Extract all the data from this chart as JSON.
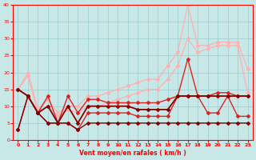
{
  "x": [
    0,
    1,
    2,
    3,
    4,
    5,
    6,
    7,
    8,
    9,
    10,
    11,
    12,
    13,
    14,
    15,
    16,
    17,
    18,
    19,
    20,
    21,
    22,
    23
  ],
  "line_lightpink1": [
    15,
    20,
    9,
    12,
    8,
    10,
    10,
    13,
    13,
    14,
    15,
    16,
    17,
    18,
    18,
    22,
    26,
    40,
    28,
    28,
    29,
    29,
    29,
    21
  ],
  "line_lightpink2": [
    15,
    19,
    8,
    10,
    7,
    9,
    8,
    10,
    10,
    11,
    12,
    13,
    14,
    15,
    15,
    18,
    22,
    30,
    26,
    27,
    28,
    28,
    28,
    14
  ],
  "line_red1": [
    3,
    13,
    8,
    5,
    5,
    5,
    3,
    8,
    8,
    8,
    8,
    8,
    7,
    7,
    7,
    7,
    13,
    24,
    13,
    8,
    8,
    13,
    7,
    7
  ],
  "line_red2": [
    15,
    13,
    8,
    13,
    5,
    13,
    8,
    12,
    12,
    11,
    11,
    11,
    11,
    11,
    11,
    12,
    13,
    13,
    13,
    13,
    14,
    14,
    13,
    13
  ],
  "line_darkred1": [
    15,
    13,
    8,
    10,
    5,
    10,
    5,
    10,
    10,
    10,
    10,
    10,
    9,
    9,
    9,
    9,
    13,
    13,
    13,
    13,
    13,
    13,
    13,
    13
  ],
  "line_darkred2": [
    3,
    13,
    8,
    5,
    5,
    5,
    3,
    5,
    5,
    5,
    5,
    5,
    5,
    5,
    5,
    5,
    5,
    5,
    5,
    5,
    5,
    5,
    5,
    5
  ],
  "bg_color": "#c8e8e8",
  "xlabel": "Vent moyen/en rafales ( km/h )",
  "ylim": [
    0,
    40
  ],
  "xlim": [
    -0.5,
    23.5
  ],
  "yticks": [
    0,
    5,
    10,
    15,
    20,
    25,
    30,
    35,
    40
  ],
  "xticks": [
    0,
    1,
    2,
    3,
    4,
    5,
    6,
    7,
    8,
    9,
    10,
    11,
    12,
    13,
    14,
    15,
    16,
    17,
    18,
    19,
    20,
    21,
    22,
    23
  ]
}
